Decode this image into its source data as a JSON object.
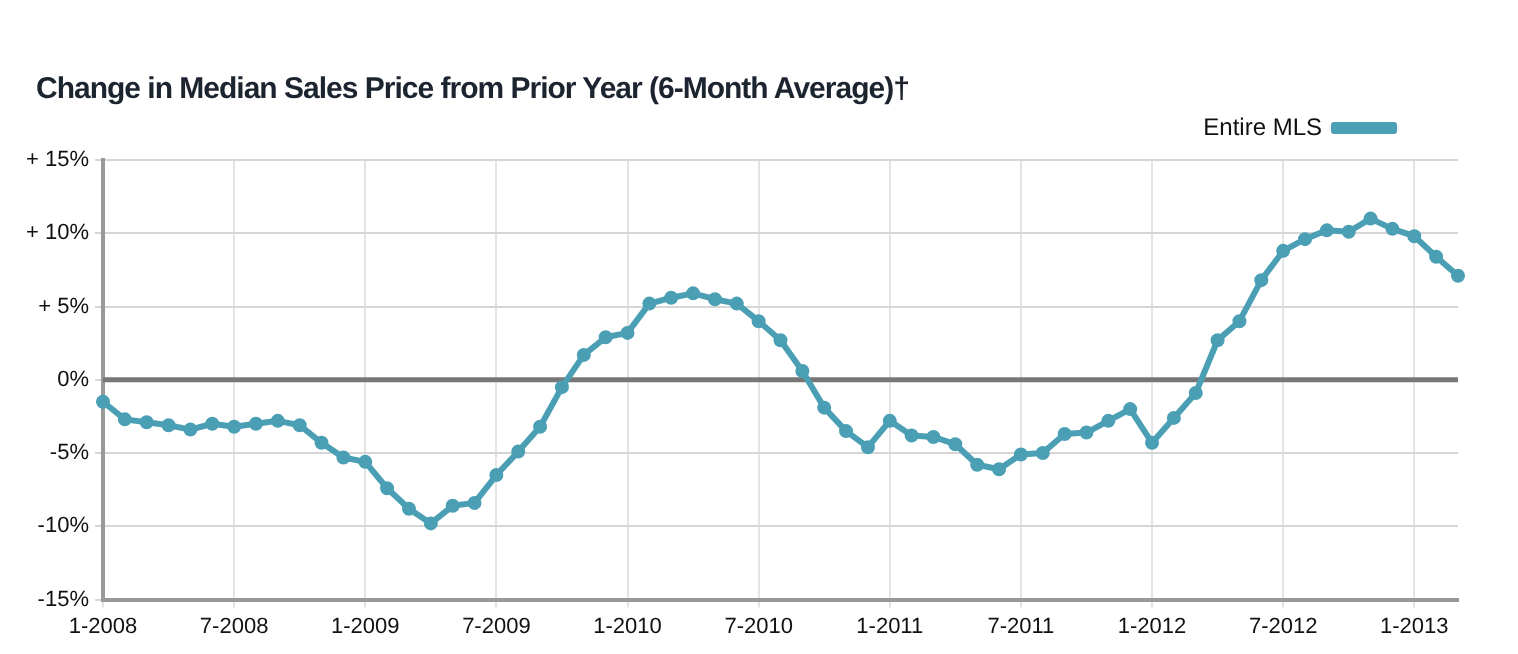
{
  "chart_data": {
    "type": "line",
    "title": "Change in Median Sales Price from Prior Year (6-Month Average)†",
    "x": [
      "2008-01",
      "2008-02",
      "2008-03",
      "2008-04",
      "2008-05",
      "2008-06",
      "2008-07",
      "2008-08",
      "2008-09",
      "2008-10",
      "2008-11",
      "2008-12",
      "2009-01",
      "2009-02",
      "2009-03",
      "2009-04",
      "2009-05",
      "2009-06",
      "2009-07",
      "2009-08",
      "2009-09",
      "2009-10",
      "2009-11",
      "2009-12",
      "2010-01",
      "2010-02",
      "2010-03",
      "2010-04",
      "2010-05",
      "2010-06",
      "2010-07",
      "2010-08",
      "2010-09",
      "2010-10",
      "2010-11",
      "2010-12",
      "2011-01",
      "2011-02",
      "2011-03",
      "2011-04",
      "2011-05",
      "2011-06",
      "2011-07",
      "2011-08",
      "2011-09",
      "2011-10",
      "2011-11",
      "2011-12",
      "2012-01",
      "2012-02",
      "2012-03",
      "2012-04",
      "2012-05",
      "2012-06",
      "2012-07",
      "2012-08",
      "2012-09",
      "2012-10",
      "2012-11",
      "2012-12",
      "2013-01",
      "2013-02",
      "2013-03"
    ],
    "series": [
      {
        "name": "Entire MLS",
        "color": "#4a9fb5",
        "values": [
          -1.5,
          -2.7,
          -2.9,
          -3.1,
          -3.4,
          -3.0,
          -3.2,
          -3.0,
          -2.8,
          -3.1,
          -4.3,
          -5.3,
          -5.6,
          -7.4,
          -8.8,
          -9.8,
          -8.6,
          -8.4,
          -6.5,
          -4.9,
          -3.2,
          -0.5,
          1.7,
          2.9,
          3.2,
          5.2,
          5.6,
          5.9,
          5.5,
          5.2,
          4.0,
          2.7,
          0.6,
          -1.9,
          -3.5,
          -4.6,
          -2.8,
          -3.8,
          -3.9,
          -4.4,
          -5.8,
          -6.1,
          -5.1,
          -5.0,
          -3.7,
          -3.6,
          -2.8,
          -2.0,
          -4.3,
          -2.6,
          -0.9,
          2.7,
          4.0,
          6.8,
          8.8,
          9.6,
          10.2,
          10.1,
          11.0,
          10.3,
          9.8,
          8.4,
          7.1
        ]
      }
    ],
    "xlim": [
      "2008-01",
      "2013-03"
    ],
    "xticks": [
      {
        "value": "2008-01",
        "label": "1-2008"
      },
      {
        "value": "2008-07",
        "label": "7-2008"
      },
      {
        "value": "2009-01",
        "label": "1-2009"
      },
      {
        "value": "2009-07",
        "label": "7-2009"
      },
      {
        "value": "2010-01",
        "label": "1-2010"
      },
      {
        "value": "2010-07",
        "label": "7-2010"
      },
      {
        "value": "2011-01",
        "label": "1-2011"
      },
      {
        "value": "2011-07",
        "label": "7-2011"
      },
      {
        "value": "2012-01",
        "label": "1-2012"
      },
      {
        "value": "2012-07",
        "label": "7-2012"
      },
      {
        "value": "2013-01",
        "label": "1-2013"
      }
    ],
    "ylim": [
      -15,
      15
    ],
    "yticks": [
      {
        "value": -15,
        "label": "-15%"
      },
      {
        "value": -10,
        "label": "-10%"
      },
      {
        "value": -5,
        "label": "-5%"
      },
      {
        "value": 0,
        "label": "0%"
      },
      {
        "value": 5,
        "label": "+ 5%"
      },
      {
        "value": 10,
        "label": "+ 10%"
      },
      {
        "value": 15,
        "label": "+ 15%"
      }
    ],
    "ref_lines": [
      {
        "axis": "y",
        "value": 0,
        "color": "#777777"
      }
    ],
    "grid": true,
    "legend": "top right",
    "marker": "circle",
    "line_style": "solid"
  }
}
